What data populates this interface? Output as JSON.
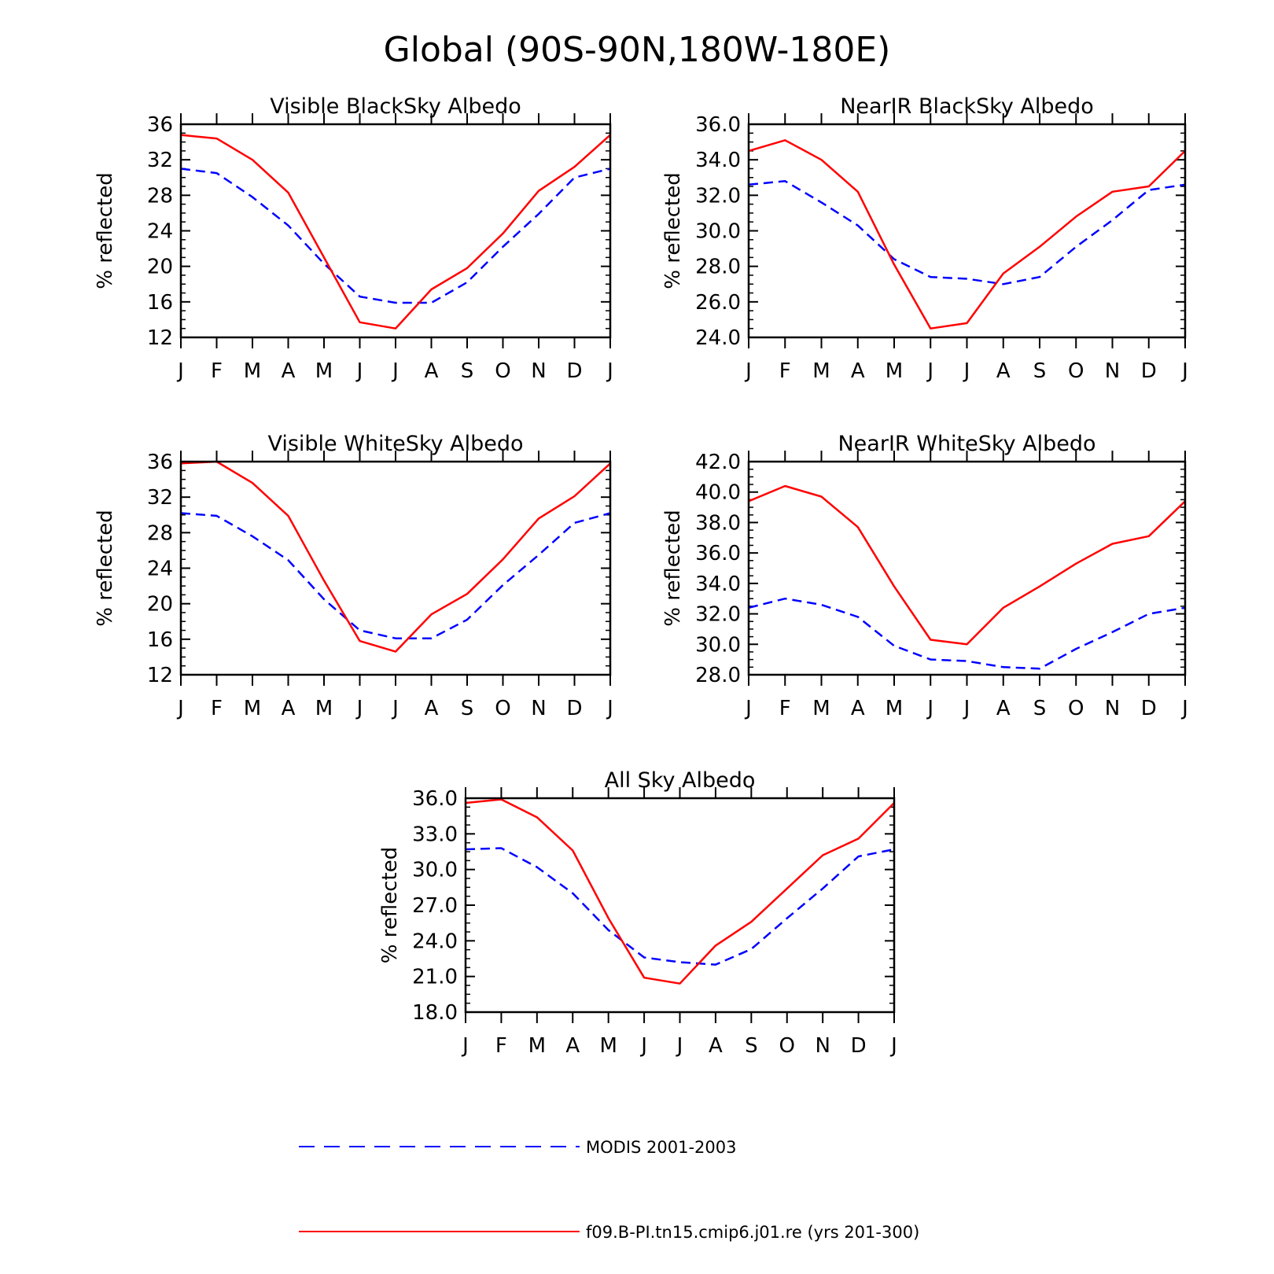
{
  "title": "Global (90S-90N,180W-180E)",
  "legend": [
    {
      "label": "MODIS 2001-2003",
      "color": "#0000ff",
      "dash": "dashed"
    },
    {
      "label": "f09.B-PI.tn15.cmip6.j01.re (yrs 201-300)",
      "color": "#ff0000",
      "dash": "solid"
    }
  ],
  "chart_data": [
    {
      "type": "line",
      "title": "Visible BlackSky Albedo",
      "ylabel": "% reflected",
      "xlabel": "",
      "categories": [
        "J",
        "F",
        "M",
        "A",
        "M",
        "J",
        "J",
        "A",
        "S",
        "O",
        "N",
        "D",
        "J"
      ],
      "ylim": [
        12,
        36
      ],
      "yticks": [
        "12",
        "16",
        "20",
        "24",
        "28",
        "32",
        "36"
      ],
      "series": [
        {
          "name": "MODIS 2001-2003",
          "color": "#0000ff",
          "style": "dashed",
          "values": [
            31.0,
            30.5,
            27.8,
            24.6,
            20.3,
            16.6,
            15.9,
            15.9,
            18.2,
            22.2,
            25.9,
            30.0,
            31.0
          ]
        },
        {
          "name": "f09.B-PI.tn15.cmip6.j01.re (yrs 201-300)",
          "color": "#ff0000",
          "style": "solid",
          "values": [
            34.8,
            34.4,
            32.0,
            28.3,
            21.0,
            13.7,
            13.0,
            17.4,
            19.8,
            23.7,
            28.5,
            31.2,
            34.8
          ]
        }
      ]
    },
    {
      "type": "line",
      "title": "NearIR BlackSky Albedo",
      "ylabel": "% reflected",
      "xlabel": "",
      "categories": [
        "J",
        "F",
        "M",
        "A",
        "M",
        "J",
        "J",
        "A",
        "S",
        "O",
        "N",
        "D",
        "J"
      ],
      "ylim": [
        24,
        36
      ],
      "yticks": [
        "24.0",
        "26.0",
        "28.0",
        "30.0",
        "32.0",
        "34.0",
        "36.0"
      ],
      "series": [
        {
          "name": "MODIS 2001-2003",
          "color": "#0000ff",
          "style": "dashed",
          "values": [
            32.6,
            32.8,
            31.6,
            30.3,
            28.4,
            27.4,
            27.3,
            27.0,
            27.4,
            29.1,
            30.6,
            32.3,
            32.6
          ]
        },
        {
          "name": "f09.B-PI.tn15.cmip6.j01.re (yrs 201-300)",
          "color": "#ff0000",
          "style": "solid",
          "values": [
            34.5,
            35.1,
            34.0,
            32.2,
            28.1,
            24.5,
            24.8,
            27.6,
            29.1,
            30.8,
            32.2,
            32.5,
            34.5
          ]
        }
      ]
    },
    {
      "type": "line",
      "title": "Visible WhiteSky Albedo",
      "ylabel": "% reflected",
      "xlabel": "",
      "categories": [
        "J",
        "F",
        "M",
        "A",
        "M",
        "J",
        "J",
        "A",
        "S",
        "O",
        "N",
        "D",
        "J"
      ],
      "ylim": [
        12,
        36
      ],
      "yticks": [
        "12",
        "16",
        "20",
        "24",
        "28",
        "32",
        "36"
      ],
      "series": [
        {
          "name": "MODIS 2001-2003",
          "color": "#0000ff",
          "style": "dashed",
          "values": [
            30.2,
            29.9,
            27.6,
            24.9,
            20.5,
            17.0,
            16.1,
            16.1,
            18.2,
            22.1,
            25.5,
            29.1,
            30.2
          ]
        },
        {
          "name": "f09.B-PI.tn15.cmip6.j01.re (yrs 201-300)",
          "color": "#ff0000",
          "style": "solid",
          "values": [
            35.8,
            36.0,
            33.6,
            29.9,
            22.6,
            15.8,
            14.6,
            18.8,
            21.1,
            25.0,
            29.6,
            32.1,
            35.8
          ]
        }
      ]
    },
    {
      "type": "line",
      "title": "NearIR WhiteSky Albedo",
      "ylabel": "% reflected",
      "xlabel": "",
      "categories": [
        "J",
        "F",
        "M",
        "A",
        "M",
        "J",
        "J",
        "A",
        "S",
        "O",
        "N",
        "D",
        "J"
      ],
      "ylim": [
        28,
        42
      ],
      "yticks": [
        "28.0",
        "30.0",
        "32.0",
        "34.0",
        "36.0",
        "38.0",
        "40.0",
        "42.0"
      ],
      "series": [
        {
          "name": "MODIS 2001-2003",
          "color": "#0000ff",
          "style": "dashed",
          "values": [
            32.4,
            33.0,
            32.6,
            31.8,
            29.9,
            29.0,
            28.9,
            28.5,
            28.4,
            29.7,
            30.8,
            32.0,
            32.4
          ]
        },
        {
          "name": "f09.B-PI.tn15.cmip6.j01.re (yrs 201-300)",
          "color": "#ff0000",
          "style": "solid",
          "values": [
            39.4,
            40.4,
            39.7,
            37.7,
            33.8,
            30.3,
            30.0,
            32.4,
            33.8,
            35.3,
            36.6,
            37.1,
            39.4
          ]
        }
      ]
    },
    {
      "type": "line",
      "title": "All Sky Albedo",
      "ylabel": "% reflected",
      "xlabel": "",
      "categories": [
        "J",
        "F",
        "M",
        "A",
        "M",
        "J",
        "J",
        "A",
        "S",
        "O",
        "N",
        "D",
        "J"
      ],
      "ylim": [
        18,
        36
      ],
      "yticks": [
        "18.0",
        "21.0",
        "24.0",
        "27.0",
        "30.0",
        "33.0",
        "36.0"
      ],
      "series": [
        {
          "name": "MODIS 2001-2003",
          "color": "#0000ff",
          "style": "dashed",
          "values": [
            31.7,
            31.8,
            30.2,
            28.0,
            24.9,
            22.6,
            22.2,
            22.0,
            23.3,
            25.9,
            28.4,
            31.1,
            31.7
          ]
        },
        {
          "name": "f09.B-PI.tn15.cmip6.j01.re (yrs 201-300)",
          "color": "#ff0000",
          "style": "solid",
          "values": [
            35.6,
            35.9,
            34.4,
            31.6,
            25.9,
            20.9,
            20.4,
            23.6,
            25.6,
            28.4,
            31.2,
            32.6,
            35.6
          ]
        }
      ]
    }
  ]
}
